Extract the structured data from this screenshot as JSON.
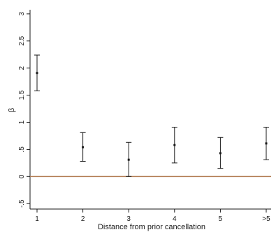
{
  "chart_data": {
    "type": "scatter",
    "subtype": "errorbar",
    "xlabel": "Distance from prior cancellation",
    "ylabel": "β",
    "categories": [
      "1",
      "2",
      "3",
      "4",
      "5",
      ">5"
    ],
    "y_ticks": [
      {
        "value": -0.5,
        "label": "-.5"
      },
      {
        "value": 0,
        "label": "0"
      },
      {
        "value": 0.5,
        "label": ".5"
      },
      {
        "value": 1,
        "label": "1"
      },
      {
        "value": 1.5,
        "label": "1.5"
      },
      {
        "value": 2,
        "label": "2"
      },
      {
        "value": 2.5,
        "label": "2.5"
      },
      {
        "value": 3,
        "label": "3"
      }
    ],
    "ylim": [
      -0.6,
      3.05
    ],
    "reference_line": {
      "y": 0,
      "color": "#b07a4f"
    },
    "series": [
      {
        "values": [
          1.91,
          0.54,
          0.31,
          0.58,
          0.43,
          0.61
        ],
        "lower": [
          1.58,
          0.28,
          0.0,
          0.25,
          0.15,
          0.31
        ],
        "upper": [
          2.24,
          0.81,
          0.63,
          0.91,
          0.72,
          0.91
        ]
      }
    ],
    "grid": false,
    "legend": "none",
    "colors": {
      "marker": "#1a1a1a",
      "axis": "#1a1a1a"
    }
  }
}
